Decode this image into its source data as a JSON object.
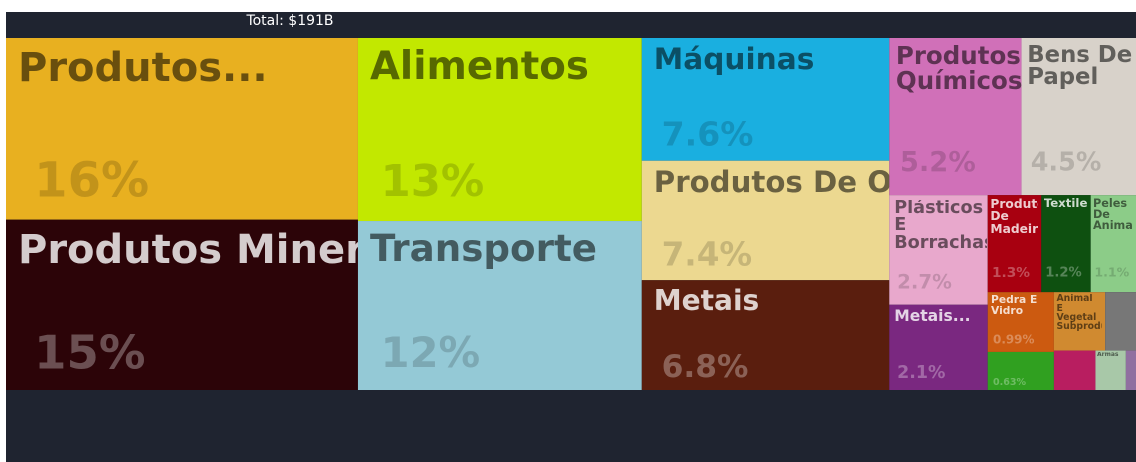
{
  "chart_data": {
    "type": "treemap",
    "title": "Total: $191B",
    "categories": [
      "Produtos...",
      "Produtos Minerais",
      "Alimentos",
      "Transporte",
      "Máquinas",
      "Produtos De Origem Animal",
      "Metais",
      "Produtos Químicos",
      "Bens De Papel",
      "Plásticos E Borrachas",
      "Metais...",
      "Produtos De Madeira",
      "Textiles",
      "Peles De Animais",
      "Pedra E Vidro",
      null,
      "Animal E Vegetal Subprodutos",
      null,
      null,
      "Armas",
      null
    ],
    "values": [
      16,
      15,
      13,
      12,
      7.6,
      7.4,
      6.8,
      5.2,
      4.5,
      2.7,
      2.1,
      1.3,
      1.2,
      1.1,
      0.99,
      0.63,
      0.75,
      0.45,
      0.41,
      0.3,
      0.1
    ],
    "value_labels": [
      "16%",
      "15%",
      "13%",
      "12%",
      "7.6%",
      "7.4%",
      "6.8%",
      "5.2%",
      "4.5%",
      "2.7%",
      "2.1%",
      "1.3%",
      "1.2%",
      "1.1%",
      "0.99%",
      "0.63%",
      null,
      null,
      null,
      null,
      null
    ],
    "colors": [
      "#e8b020",
      "#2c0408",
      "#c2e800",
      "#94c9d6",
      "#1aafe0",
      "#ecd890",
      "#5a1e0e",
      "#d070b8",
      "#d8d2ca",
      "#e8a8cc",
      "#7a2880",
      "#a80010",
      "#0e5010",
      "#8ccc88",
      "#cc5a10",
      "#30a020",
      "#d08a30",
      "#777777",
      "#b81e60",
      "#a8c8a8",
      "#9070a0"
    ]
  }
}
